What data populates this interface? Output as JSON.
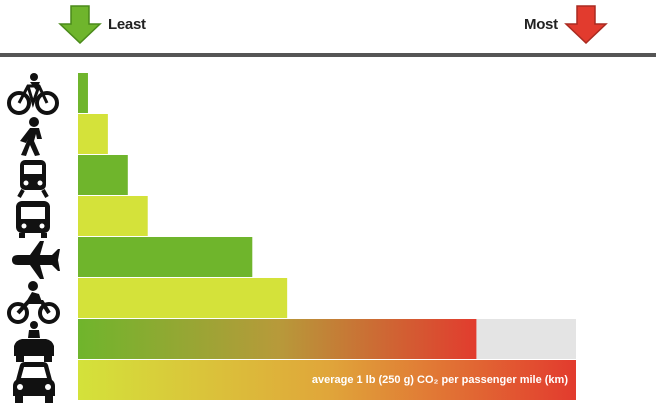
{
  "header": {
    "least_label": "Least",
    "most_label": "Most",
    "least_color": "#6fb52c",
    "most_color": "#e23b2e"
  },
  "chart_data": {
    "type": "bar",
    "orientation": "horizontal",
    "categories": [
      "bicycle-icon",
      "walking-icon",
      "train-icon",
      "bus-icon",
      "airplane-icon",
      "motorcycle-icon",
      "car-with-passengers-icon",
      "car-icon"
    ],
    "values": [
      0.02,
      0.06,
      0.1,
      0.14,
      0.35,
      0.42,
      0.8,
      1.0
    ],
    "extended_range": [
      null,
      null,
      null,
      null,
      null,
      null,
      1.0,
      null
    ],
    "annotation": "average 1 lb (250 g) CO₂ per passenger mile (km)",
    "colors": {
      "low": "#6fb52c",
      "mid": "#d4e23a",
      "high": "#e23b2e",
      "range": "#e4e4e4"
    }
  }
}
